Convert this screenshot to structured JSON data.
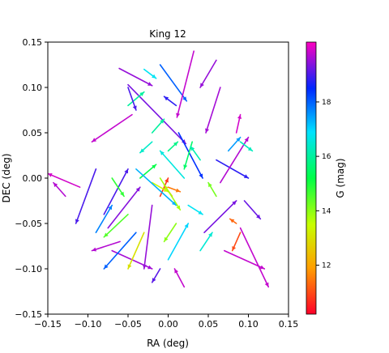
{
  "chart_data": {
    "type": "scatter",
    "subtype": "vector-field (proper-motion arrows)",
    "title": "King 12",
    "xlabel": "RA (deg)",
    "ylabel": "DEC (deg)",
    "xlim": [
      -0.15,
      0.15
    ],
    "ylim": [
      -0.15,
      0.15
    ],
    "xticks": [
      -0.15,
      -0.1,
      -0.05,
      0.0,
      0.05,
      0.1,
      0.15
    ],
    "yticks": [
      -0.15,
      -0.1,
      -0.05,
      0.0,
      0.05,
      0.1,
      0.15
    ],
    "xtick_labels": [
      "−0.15",
      "−0.10",
      "−0.05",
      "0.00",
      "0.05",
      "0.10",
      "0.15"
    ],
    "ytick_labels": [
      "−0.15",
      "−0.10",
      "−0.05",
      "0.00",
      "0.05",
      "0.10",
      "0.15"
    ],
    "grid": false,
    "colorbar": {
      "label": "G (mag)",
      "colormap": "gist_rainbow",
      "range": [
        10.2,
        20.2
      ],
      "ticks": [
        12,
        14,
        16,
        18
      ],
      "tick_labels": [
        "12",
        "14",
        "16",
        "18"
      ]
    },
    "arrows": [
      {
        "x": -0.061,
        "y": 0.121,
        "dx": 0.041,
        "dy": -0.019,
        "g": 19.5
      },
      {
        "x": -0.05,
        "y": 0.103,
        "dx": 0.072,
        "dy": -0.065,
        "g": 19.3
      },
      {
        "x": -0.01,
        "y": 0.125,
        "dx": 0.033,
        "dy": -0.04,
        "g": 18.0
      },
      {
        "x": 0.032,
        "y": 0.14,
        "dx": -0.021,
        "dy": -0.073,
        "g": 19.8
      },
      {
        "x": 0.065,
        "y": 0.1,
        "dx": -0.018,
        "dy": -0.05,
        "g": 19.6
      },
      {
        "x": -0.045,
        "y": 0.07,
        "dx": -0.05,
        "dy": -0.03,
        "g": 19.8
      },
      {
        "x": -0.09,
        "y": 0.01,
        "dx": -0.025,
        "dy": -0.06,
        "g": 19.0
      },
      {
        "x": -0.128,
        "y": -0.02,
        "dx": -0.015,
        "dy": 0.015,
        "g": 19.7
      },
      {
        "x": -0.11,
        "y": -0.01,
        "dx": -0.04,
        "dy": 0.015,
        "g": 19.9
      },
      {
        "x": 0.013,
        "y": 0.05,
        "dx": 0.03,
        "dy": -0.05,
        "g": 18.4
      },
      {
        "x": 0.06,
        "y": 0.02,
        "dx": 0.04,
        "dy": -0.02,
        "g": 18.8
      },
      {
        "x": 0.065,
        "y": -0.005,
        "dx": 0.035,
        "dy": 0.05,
        "g": 19.7
      },
      {
        "x": 0.095,
        "y": -0.025,
        "dx": 0.02,
        "dy": -0.02,
        "g": 19.2
      },
      {
        "x": 0.09,
        "y": -0.055,
        "dx": 0.035,
        "dy": -0.065,
        "g": 19.8
      },
      {
        "x": 0.085,
        "y": -0.05,
        "dx": -0.008,
        "dy": 0.005,
        "g": 11.3
      },
      {
        "x": 0.09,
        "y": -0.06,
        "dx": -0.01,
        "dy": -0.02,
        "g": 11.0
      },
      {
        "x": -0.08,
        "y": -0.04,
        "dx": 0.03,
        "dy": 0.05,
        "g": 19.0
      },
      {
        "x": -0.07,
        "y": -0.08,
        "dx": 0.05,
        "dy": -0.02,
        "g": 19.6
      },
      {
        "x": -0.04,
        "y": -0.06,
        "dx": -0.04,
        "dy": -0.04,
        "g": 18.0
      },
      {
        "x": -0.02,
        "y": -0.03,
        "dx": -0.01,
        "dy": -0.07,
        "g": 19.5
      },
      {
        "x": 0.0,
        "y": -0.09,
        "dx": 0.025,
        "dy": 0.04,
        "g": 17.0
      },
      {
        "x": -0.03,
        "y": -0.06,
        "dx": -0.02,
        "dy": -0.04,
        "g": 13.0
      },
      {
        "x": -0.05,
        "y": -0.04,
        "dx": -0.03,
        "dy": -0.025,
        "g": 14.5
      },
      {
        "x": -0.01,
        "y": -0.02,
        "dx": 0.01,
        "dy": 0.02,
        "g": 10.8
      },
      {
        "x": 0.0,
        "y": -0.01,
        "dx": 0.015,
        "dy": -0.005,
        "g": 11.5
      },
      {
        "x": 0.005,
        "y": -0.02,
        "dx": -0.01,
        "dy": 0.012,
        "g": 12.2
      },
      {
        "x": -0.02,
        "y": -0.005,
        "dx": 0.02,
        "dy": -0.01,
        "g": 13.5
      },
      {
        "x": 0.01,
        "y": -0.05,
        "dx": -0.015,
        "dy": -0.02,
        "g": 14.0
      },
      {
        "x": 0.03,
        "y": 0.04,
        "dx": -0.01,
        "dy": -0.03,
        "g": 15.5
      },
      {
        "x": 0.04,
        "y": 0.02,
        "dx": -0.012,
        "dy": 0.015,
        "g": 16.2
      },
      {
        "x": -0.02,
        "y": 0.05,
        "dx": 0.015,
        "dy": 0.015,
        "g": 16.0
      },
      {
        "x": -0.02,
        "y": 0.04,
        "dx": -0.015,
        "dy": -0.012,
        "g": 16.4
      },
      {
        "x": 0.0,
        "y": 0.03,
        "dx": 0.012,
        "dy": 0.01,
        "g": 15.8
      },
      {
        "x": -0.035,
        "y": 0.0,
        "dx": 0.02,
        "dy": 0.015,
        "g": 15.2
      },
      {
        "x": 0.025,
        "y": -0.03,
        "dx": 0.018,
        "dy": -0.01,
        "g": 16.8
      },
      {
        "x": 0.06,
        "y": -0.02,
        "dx": -0.01,
        "dy": 0.015,
        "g": 14.2
      },
      {
        "x": -0.07,
        "y": 0.0,
        "dx": 0.015,
        "dy": -0.02,
        "g": 14.8
      },
      {
        "x": 0.04,
        "y": -0.08,
        "dx": 0.015,
        "dy": 0.02,
        "g": 16.5
      },
      {
        "x": -0.05,
        "y": 0.08,
        "dx": 0.02,
        "dy": 0.015,
        "g": 16.0
      },
      {
        "x": 0.09,
        "y": 0.04,
        "dx": 0.015,
        "dy": -0.01,
        "g": 16.3
      },
      {
        "x": 0.085,
        "y": 0.05,
        "dx": 0.005,
        "dy": 0.02,
        "g": 19.9
      },
      {
        "x": 0.075,
        "y": 0.03,
        "dx": 0.015,
        "dy": 0.015,
        "g": 17.5
      },
      {
        "x": -0.09,
        "y": -0.06,
        "dx": 0.02,
        "dy": 0.03,
        "g": 17.7
      },
      {
        "x": -0.075,
        "y": -0.055,
        "dx": 0.04,
        "dy": 0.045,
        "g": 19.4
      },
      {
        "x": -0.06,
        "y": -0.07,
        "dx": -0.035,
        "dy": -0.01,
        "g": 19.7
      },
      {
        "x": -0.03,
        "y": 0.12,
        "dx": 0.015,
        "dy": -0.01,
        "g": 16.8
      },
      {
        "x": 0.01,
        "y": 0.08,
        "dx": -0.015,
        "dy": 0.01,
        "g": 18.8
      },
      {
        "x": 0.06,
        "y": 0.13,
        "dx": -0.02,
        "dy": -0.03,
        "g": 19.5
      },
      {
        "x": 0.02,
        "y": -0.12,
        "dx": -0.012,
        "dy": 0.02,
        "g": 19.8
      },
      {
        "x": -0.01,
        "y": -0.1,
        "dx": -0.01,
        "dy": -0.015,
        "g": 19.1
      },
      {
        "x": 0.045,
        "y": -0.06,
        "dx": 0.04,
        "dy": 0.035,
        "g": 19.3
      },
      {
        "x": 0.07,
        "y": -0.08,
        "dx": 0.05,
        "dy": -0.02,
        "g": 19.8
      },
      {
        "x": -0.05,
        "y": 0.1,
        "dx": 0.01,
        "dy": -0.025,
        "g": 19.0
      },
      {
        "x": -0.04,
        "y": 0.01,
        "dx": 0.05,
        "dy": -0.04,
        "g": 17.3
      },
      {
        "x": 0.02,
        "y": 0.0,
        "dx": -0.03,
        "dy": 0.03,
        "g": 16.6
      },
      {
        "x": -0.01,
        "y": 0.0,
        "dx": 0.025,
        "dy": -0.035,
        "g": 13.8
      }
    ]
  }
}
